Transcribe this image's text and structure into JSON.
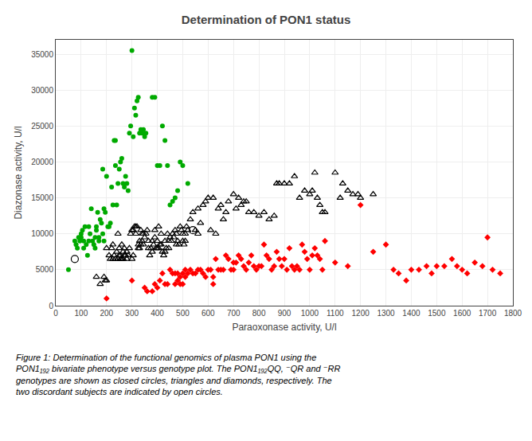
{
  "chart_data": {
    "type": "scatter",
    "title": "Determination of PON1 status",
    "xlabel": "Paraoxonase activity, U/l",
    "ylabel": "Diazonase activity, U/l",
    "xlim": [
      0,
      1800
    ],
    "ylim": [
      0,
      37000
    ],
    "xticks": [
      0,
      100,
      200,
      300,
      400,
      500,
      600,
      700,
      800,
      900,
      1000,
      1100,
      1200,
      1300,
      1400,
      1500,
      1600,
      1700,
      1800
    ],
    "yticks": [
      0,
      5000,
      10000,
      15000,
      20000,
      25000,
      30000,
      35000
    ],
    "grid": true,
    "annotations": [
      "Figure 1: Determination of the functional genomics of plasma PON1 using the",
      "PON1₁₉₂ bivariate phenotype versus genotype plot. The PON1₁₉₂QQ, ⁻QR and ⁻RR",
      "genotypes are shown as closed circles, triangles and diamonds, respectively. The",
      "two discordant subjects are indicated by open circles."
    ],
    "series": [
      {
        "color": "#00AA00",
        "marker": "circle",
        "x": [
          50,
          75,
          80,
          85,
          90,
          95,
          100,
          100,
          105,
          110,
          110,
          115,
          120,
          125,
          130,
          130,
          135,
          140,
          145,
          150,
          155,
          155,
          160,
          160,
          165,
          170,
          170,
          175,
          180,
          185,
          185,
          190,
          190,
          195,
          200,
          205,
          210,
          215,
          220,
          225,
          230,
          235,
          235,
          240,
          245,
          250,
          255,
          260,
          265,
          270,
          275,
          280,
          285,
          290,
          295,
          300,
          305,
          310,
          315,
          320,
          325,
          330,
          335,
          340,
          345,
          350,
          355,
          380,
          390,
          400,
          410,
          420,
          430,
          440,
          450,
          460,
          470,
          480,
          490,
          500,
          520
        ],
        "values": [
          5000,
          9000,
          8500,
          8000,
          9500,
          9000,
          10000,
          9500,
          10500,
          8000,
          9000,
          11000,
          8500,
          7000,
          9000,
          11000,
          10000,
          13500,
          9000,
          8500,
          8000,
          9500,
          11000,
          10500,
          13000,
          9000,
          9500,
          12000,
          11500,
          10000,
          19000,
          13500,
          9000,
          13000,
          18000,
          11000,
          11000,
          11500,
          16500,
          14000,
          23000,
          23000,
          19500,
          14000,
          17000,
          19000,
          20000,
          20500,
          17000,
          16500,
          18000,
          17000,
          16000,
          24000,
          25000,
          35500,
          23500,
          27500,
          26500,
          28500,
          29000,
          24000,
          24500,
          24000,
          24500,
          23500,
          24000,
          29000,
          29000,
          19500,
          19500,
          25000,
          23000,
          19500,
          14000,
          14500,
          15000,
          16000,
          20000,
          19500,
          17000
        ]
      },
      {
        "color": "#000000",
        "marker": "circle-open",
        "x": [
          75,
          540
        ],
        "values": [
          6500,
          10500
        ]
      },
      {
        "color": "#000000",
        "marker": "triangle-up-open",
        "x": [
          160,
          175,
          190,
          195,
          200,
          200,
          210,
          215,
          220,
          225,
          225,
          230,
          235,
          240,
          245,
          245,
          250,
          250,
          255,
          255,
          260,
          260,
          265,
          265,
          270,
          270,
          275,
          280,
          280,
          285,
          290,
          295,
          300,
          300,
          305,
          305,
          310,
          315,
          315,
          320,
          325,
          325,
          330,
          330,
          335,
          335,
          340,
          340,
          345,
          345,
          350,
          355,
          360,
          365,
          365,
          370,
          375,
          380,
          380,
          385,
          390,
          390,
          395,
          400,
          400,
          405,
          405,
          410,
          415,
          415,
          420,
          425,
          430,
          430,
          435,
          440,
          445,
          445,
          450,
          455,
          460,
          465,
          470,
          475,
          475,
          480,
          485,
          490,
          495,
          500,
          500,
          505,
          510,
          510,
          515,
          520,
          530,
          540,
          550,
          560,
          560,
          570,
          580,
          590,
          600,
          610,
          620,
          630,
          640,
          650,
          660,
          670,
          680,
          700,
          710,
          720,
          730,
          740,
          750,
          760,
          780,
          800,
          820,
          840,
          860,
          870,
          880,
          900,
          920,
          940,
          960,
          980,
          1000,
          1010,
          1020,
          1030,
          1040,
          1050,
          1060,
          1100,
          1120,
          1130,
          1150,
          1170,
          1190,
          1200,
          1250
        ],
        "values": [
          4000,
          3000,
          4000,
          3500,
          3500,
          8000,
          7000,
          6500,
          8000,
          6500,
          8500,
          7000,
          6500,
          7500,
          6500,
          10000,
          7000,
          8000,
          6500,
          7000,
          8500,
          6500,
          7500,
          6500,
          7000,
          8000,
          7000,
          6500,
          7500,
          7000,
          8000,
          10000,
          6500,
          10500,
          7000,
          10500,
          11000,
          10000,
          11000,
          11000,
          8000,
          8500,
          9000,
          8000,
          10500,
          8500,
          10000,
          9000,
          8500,
          10000,
          9500,
          10000,
          10500,
          9000,
          8000,
          7000,
          8000,
          9000,
          7500,
          8500,
          10500,
          9500,
          8000,
          8000,
          9000,
          11000,
          8000,
          8500,
          10000,
          8500,
          7500,
          7000,
          7500,
          9000,
          8000,
          10000,
          9000,
          8000,
          9500,
          9000,
          10000,
          9500,
          10500,
          10000,
          8500,
          9000,
          8500,
          11000,
          10500,
          10000,
          9000,
          8500,
          10000,
          9000,
          11000,
          10500,
          12000,
          13000,
          10500,
          10000,
          13500,
          11500,
          14000,
          14500,
          15000,
          10500,
          15000,
          10000,
          13500,
          14000,
          12000,
          13000,
          14500,
          15500,
          13500,
          15000,
          14000,
          14500,
          14500,
          13000,
          13000,
          12500,
          13000,
          12000,
          12500,
          17000,
          17000,
          17000,
          17000,
          18000,
          15000,
          16000,
          15500,
          16000,
          18500,
          15000,
          14000,
          13000,
          13000,
          18500,
          15000,
          17000,
          16000,
          15500,
          15500,
          15000,
          15500
        ]
      },
      {
        "color": "#FF0000",
        "marker": "diamond",
        "x": [
          200,
          300,
          350,
          360,
          380,
          390,
          400,
          410,
          420,
          430,
          440,
          450,
          460,
          470,
          470,
          480,
          480,
          490,
          490,
          500,
          500,
          510,
          510,
          520,
          530,
          540,
          550,
          560,
          570,
          580,
          590,
          600,
          610,
          620,
          620,
          630,
          640,
          650,
          660,
          670,
          680,
          690,
          700,
          700,
          710,
          720,
          730,
          740,
          750,
          760,
          770,
          780,
          790,
          800,
          810,
          820,
          830,
          840,
          850,
          860,
          870,
          880,
          890,
          900,
          910,
          920,
          930,
          940,
          950,
          960,
          970,
          980,
          990,
          1000,
          1010,
          1020,
          1030,
          1040,
          1050,
          1060,
          1100,
          1150,
          1200,
          1250,
          1300,
          1330,
          1350,
          1380,
          1400,
          1430,
          1460,
          1480,
          1500,
          1530,
          1560,
          1580,
          1600,
          1620,
          1650,
          1680,
          1700,
          1720,
          1750
        ],
        "values": [
          1000,
          3500,
          2500,
          2000,
          2000,
          3000,
          2500,
          3500,
          4500,
          3000,
          3000,
          5000,
          4500,
          4500,
          3000,
          4500,
          3500,
          3000,
          4000,
          4500,
          3000,
          5000,
          4000,
          4500,
          5000,
          4500,
          4500,
          5000,
          5000,
          4500,
          4000,
          5000,
          5000,
          4000,
          3000,
          6500,
          5000,
          5000,
          5000,
          7000,
          6500,
          5000,
          6000,
          5000,
          6000,
          7000,
          6500,
          5500,
          5000,
          6000,
          7000,
          5500,
          5000,
          5500,
          5500,
          8500,
          7000,
          6500,
          5000,
          5500,
          7500,
          6500,
          5500,
          6500,
          5000,
          8000,
          5500,
          5000,
          5500,
          5000,
          8500,
          7500,
          6500,
          5000,
          7000,
          8000,
          7000,
          6500,
          5000,
          9000,
          6000,
          5500,
          14000,
          7500,
          8500,
          5000,
          4500,
          3500,
          5000,
          5000,
          5500,
          4500,
          5500,
          5500,
          6500,
          5500,
          5000,
          4500,
          6000,
          5500,
          9500,
          5000,
          4500
        ]
      }
    ]
  }
}
